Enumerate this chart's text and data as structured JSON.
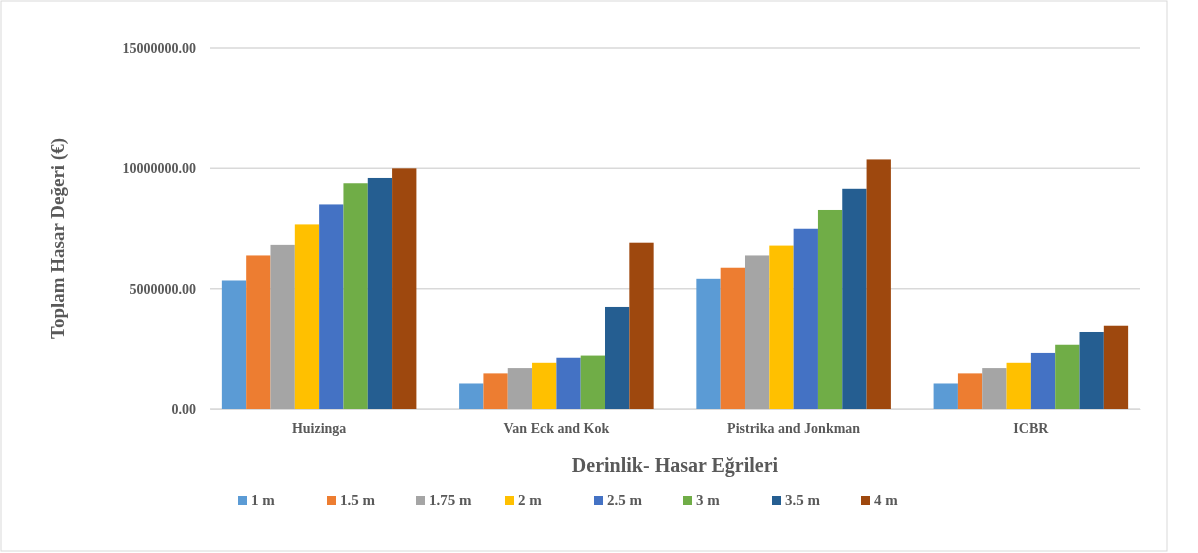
{
  "chart_data": {
    "type": "bar",
    "xlabel": "Derinlik-  Hasar Eğrileri",
    "ylabel": "Toplam Hasar Değeri (€)",
    "categories": [
      "Huizinga",
      "Van Eck and Kok",
      "Pistrika and Jonkman",
      "ICBR"
    ],
    "series": [
      {
        "name": "1 m",
        "color": "#5b9bd5",
        "values": [
          5340000,
          1060000,
          5410000,
          1060000
        ]
      },
      {
        "name": "1.5 m",
        "color": "#ed7d31",
        "values": [
          6380000,
          1480000,
          5870000,
          1480000
        ]
      },
      {
        "name": "1.75 m",
        "color": "#a5a5a5",
        "values": [
          6820000,
          1700000,
          6380000,
          1700000
        ]
      },
      {
        "name": "2 m",
        "color": "#ffc000",
        "values": [
          7670000,
          1920000,
          6790000,
          1920000
        ]
      },
      {
        "name": "2.5 m",
        "color": "#4472c4",
        "values": [
          8500000,
          2130000,
          7490000,
          2330000
        ]
      },
      {
        "name": "3 m",
        "color": "#70ad47",
        "values": [
          9380000,
          2220000,
          8270000,
          2670000
        ]
      },
      {
        "name": "3.5 m",
        "color": "#255e91",
        "values": [
          9600000,
          4240000,
          9150000,
          3200000
        ]
      },
      {
        "name": "4 m",
        "color": "#9e480e",
        "values": [
          10000000,
          6910000,
          10370000,
          3460000
        ]
      }
    ],
    "ylim": [
      0,
      15000000
    ],
    "yticks": [
      {
        "value": 0,
        "label": "0.00"
      },
      {
        "value": 5000000,
        "label": "5000000.00"
      },
      {
        "value": 10000000,
        "label": "10000000.00"
      },
      {
        "value": 15000000,
        "label": "15000000.00"
      }
    ],
    "grid": "y",
    "legend": "bottom"
  }
}
